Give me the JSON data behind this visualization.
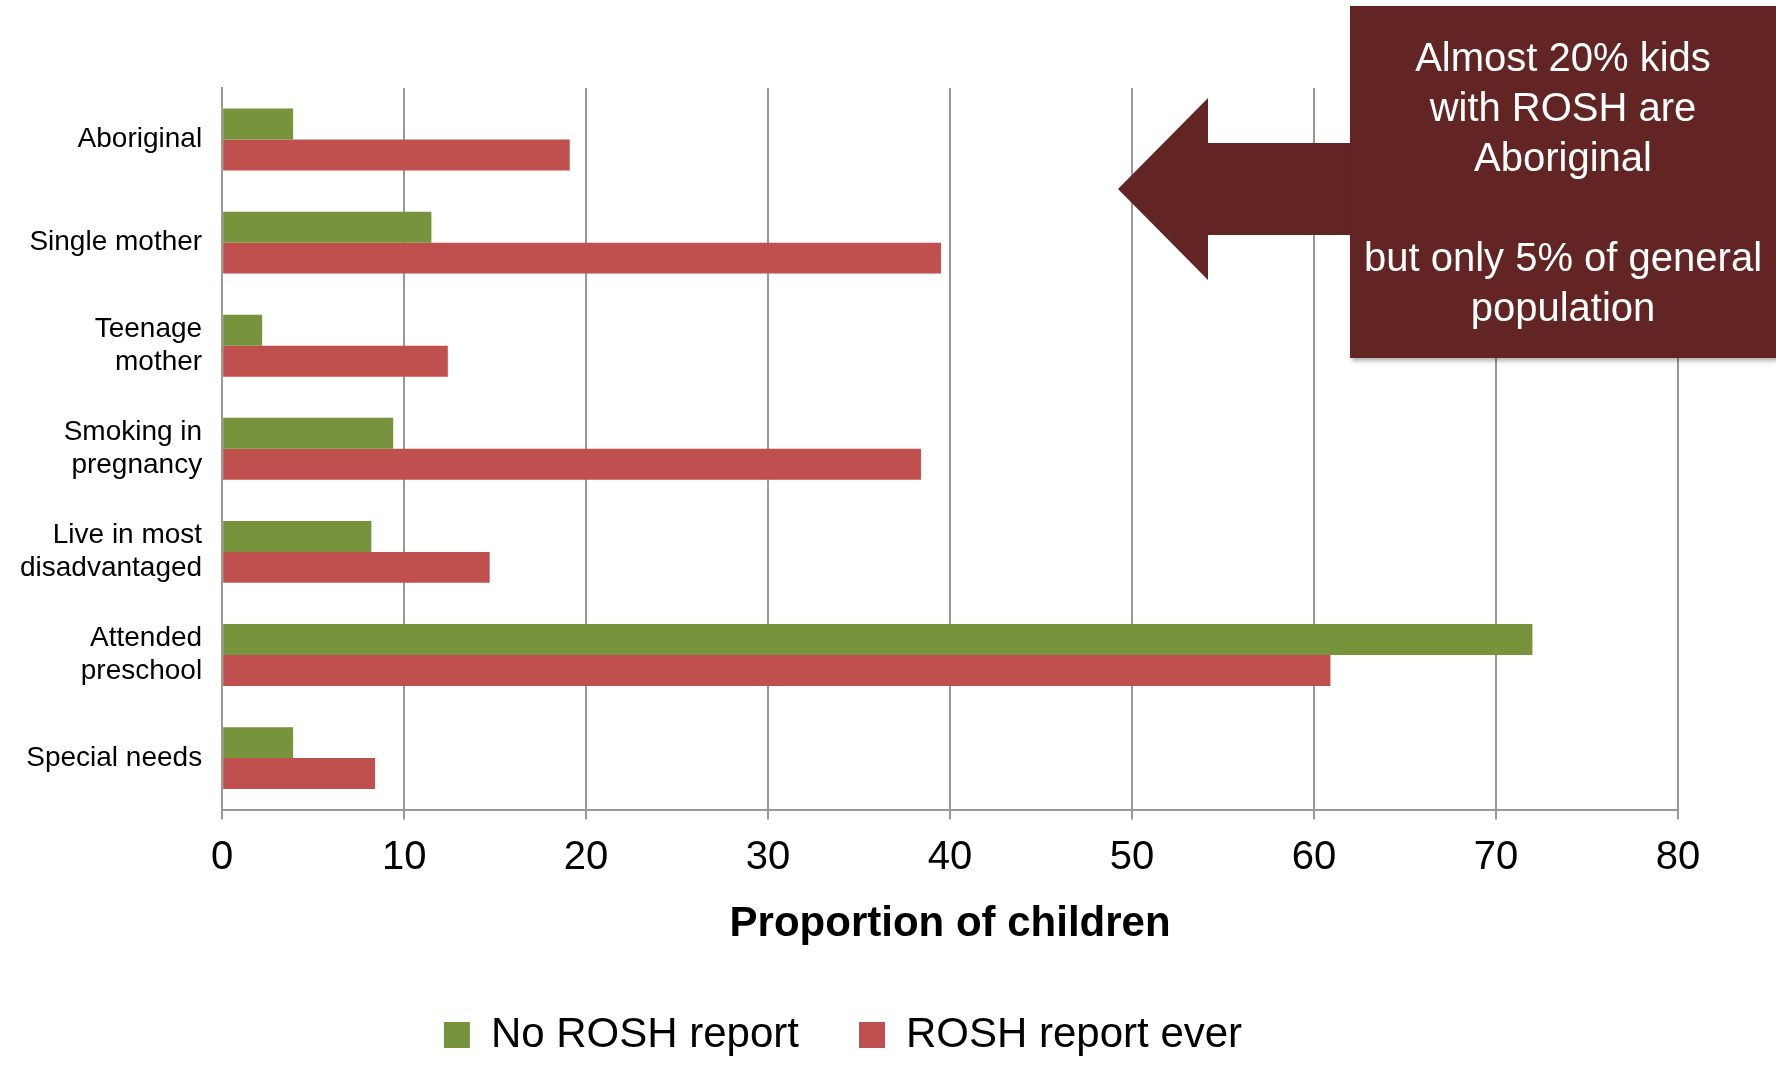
{
  "chart_data": {
    "type": "bar",
    "orientation": "horizontal",
    "xlabel": "Proportion of children",
    "categories": [
      "Aboriginal",
      "Single mother",
      "Teenage mother",
      "Smoking in pregnancy",
      "Live in most disadvantaged",
      "Attended preschool",
      "Special needs"
    ],
    "series": [
      {
        "name": "No ROSH report",
        "color": "#77933c",
        "values": [
          3.9,
          11.5,
          2.2,
          9.4,
          8.2,
          72,
          3.9
        ]
      },
      {
        "name": "ROSH report ever",
        "color": "#c0504d",
        "values": [
          19.1,
          39.5,
          12.4,
          38.4,
          14.7,
          60.9,
          8.4
        ]
      }
    ],
    "xlim": [
      0,
      80
    ],
    "xticks": [
      0,
      10,
      20,
      30,
      40,
      50,
      60,
      70,
      80
    ],
    "grid": "x",
    "legend": "bottom",
    "annotations": [
      "Almost 20% kids with ROSH are Aboriginal",
      "but only 5% of general population"
    ]
  }
}
